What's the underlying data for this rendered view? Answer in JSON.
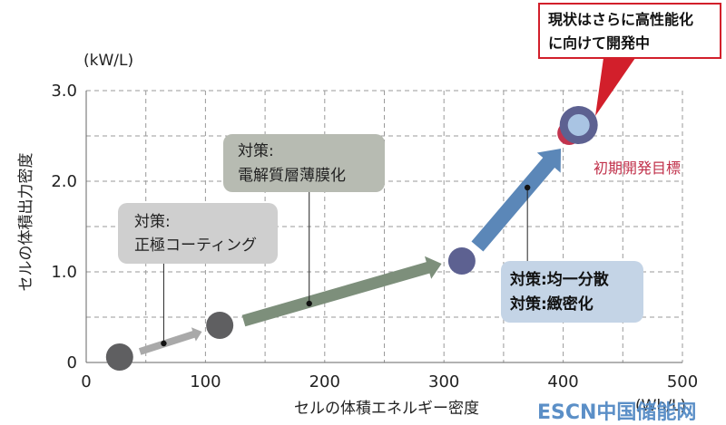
{
  "chart_data": {
    "type": "scatter",
    "xlabel": "セルの体積エネルギー密度",
    "ylabel": "セルの体積出力密度",
    "x_unit": "(Wh/L)",
    "y_unit": "(kW/L)",
    "xlim": [
      0,
      500
    ],
    "ylim": [
      0,
      3.0
    ],
    "x_ticks": [
      "0",
      "100",
      "200",
      "300",
      "400",
      "500"
    ],
    "y_ticks": [
      "0",
      "1.0",
      "2.0",
      "3.0"
    ],
    "grid": true,
    "points": [
      {
        "x": 28,
        "y": 0.06
      },
      {
        "x": 112,
        "y": 0.41
      },
      {
        "x": 315,
        "y": 1.12
      },
      {
        "x": 413,
        "y": 2.62
      }
    ],
    "target": {
      "x": 405,
      "y": 2.53,
      "label": "初期開発目標"
    },
    "arrows": [
      {
        "from": [
          45,
          0.12
        ],
        "to": [
          97,
          0.34
        ],
        "color": "#a9a9a9",
        "width": 0.08
      },
      {
        "from": [
          132,
          0.46
        ],
        "to": [
          298,
          1.09
        ],
        "color": "#7d8f7b",
        "width": 0.13
      },
      {
        "from": [
          328,
          1.28
        ],
        "to": [
          398,
          2.36
        ],
        "color": "#5b87b8",
        "width": 0.17
      }
    ],
    "annotations": [
      {
        "lines": [
          "対策:",
          "正極コーティング"
        ],
        "style": "light-gray",
        "anchor": [
          65,
          0.21
        ]
      },
      {
        "lines": [
          "対策:",
          "電解質層薄膜化"
        ],
        "style": "dark-gray",
        "anchor": [
          187,
          0.65
        ]
      },
      {
        "lines": [
          "対策:均一分散",
          "対策:緻密化"
        ],
        "style": "blue",
        "anchor": [
          370,
          1.93
        ]
      }
    ],
    "callout": {
      "lines": [
        "現状はさらに高性能化",
        "に向けて開発中"
      ]
    }
  },
  "watermark": "ESCN中国储能网",
  "colors": {
    "gray_point": "#5f5f61",
    "blue_point_outer": "#5d6191",
    "blue_point_inner": "#a9c4e3",
    "target_red": "#c2334d",
    "callout_red": "#d21f2b"
  }
}
